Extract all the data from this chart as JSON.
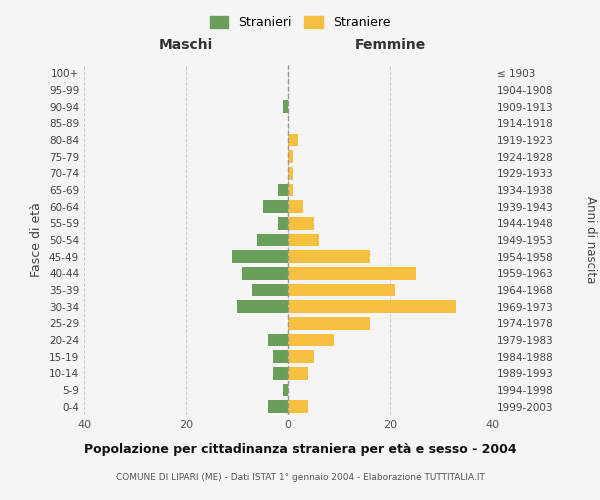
{
  "age_groups": [
    "0-4",
    "5-9",
    "10-14",
    "15-19",
    "20-24",
    "25-29",
    "30-34",
    "35-39",
    "40-44",
    "45-49",
    "50-54",
    "55-59",
    "60-64",
    "65-69",
    "70-74",
    "75-79",
    "80-84",
    "85-89",
    "90-94",
    "95-99",
    "100+"
  ],
  "birth_years": [
    "1999-2003",
    "1994-1998",
    "1989-1993",
    "1984-1988",
    "1979-1983",
    "1974-1978",
    "1969-1973",
    "1964-1968",
    "1959-1963",
    "1954-1958",
    "1949-1953",
    "1944-1948",
    "1939-1943",
    "1934-1938",
    "1929-1933",
    "1924-1928",
    "1919-1923",
    "1914-1918",
    "1909-1913",
    "1904-1908",
    "≤ 1903"
  ],
  "males": [
    4,
    1,
    3,
    3,
    4,
    0,
    10,
    7,
    9,
    11,
    6,
    2,
    5,
    2,
    0,
    0,
    0,
    0,
    1,
    0,
    0
  ],
  "females": [
    4,
    0,
    4,
    5,
    9,
    16,
    33,
    21,
    25,
    16,
    6,
    5,
    3,
    1,
    1,
    1,
    2,
    0,
    0,
    0,
    0
  ],
  "male_color": "#6a9e5b",
  "female_color": "#f5c040",
  "background_color": "#f5f5f5",
  "grid_color": "#cccccc",
  "center_line_color": "#999999",
  "title": "Popolazione per cittadinanza straniera per età e sesso - 2004",
  "subtitle": "COMUNE DI LIPARI (ME) - Dati ISTAT 1° gennaio 2004 - Elaborazione TUTTITALIA.IT",
  "xlabel_left": "Maschi",
  "xlabel_right": "Femmine",
  "ylabel_left": "Fasce di età",
  "ylabel_right": "Anni di nascita",
  "legend_male": "Stranieri",
  "legend_female": "Straniere",
  "xlim": 40
}
